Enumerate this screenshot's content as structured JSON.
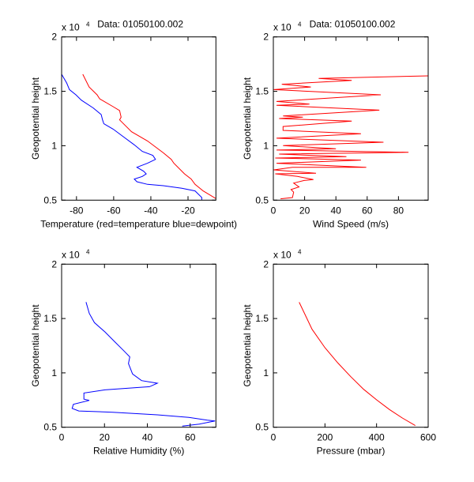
{
  "chart_data": [
    {
      "type": "line",
      "title": "Data: 01050100.002",
      "xlabel": "Temperature (red=temperature blue=dewpoint)",
      "ylabel": "Geopotential height",
      "y_exponent_label": "x 10",
      "y_exponent_power": "4",
      "xlim": [
        -88,
        -5
      ],
      "ylim": [
        5000,
        20000
      ],
      "xticks": [
        -80,
        -60,
        -40,
        -20
      ],
      "xtick_labels": [
        "-80",
        "-60",
        "-40",
        "-20"
      ],
      "yticks": [
        5000,
        10000,
        15000,
        20000
      ],
      "ytick_labels": [
        "0.5",
        "1",
        "1.5",
        "2"
      ],
      "grid": false,
      "series": [
        {
          "color": "#ff0000",
          "points": [
            [
              -76.6,
              16565
            ],
            [
              -73.2,
              15400
            ],
            [
              -68.9,
              14680
            ],
            [
              -67.5,
              14310
            ],
            [
              -60.3,
              13590
            ],
            [
              -56.8,
              13230
            ],
            [
              -56.0,
              12620
            ],
            [
              -56.8,
              12380
            ],
            [
              -50.4,
              11290
            ],
            [
              -41.8,
              10440
            ],
            [
              -33.3,
              9350
            ],
            [
              -29.0,
              8750
            ],
            [
              -27.6,
              8390
            ],
            [
              -21.9,
              7420
            ],
            [
              -18.3,
              6940
            ],
            [
              -16.2,
              6450
            ],
            [
              -11.9,
              5850
            ],
            [
              -4.8,
              5120
            ]
          ]
        },
        {
          "color": "#0000ff",
          "points": [
            [
              -88,
              16565
            ],
            [
              -85.3,
              15770
            ],
            [
              -83.8,
              15160
            ],
            [
              -80.3,
              14680
            ],
            [
              -77.4,
              14190
            ],
            [
              -71.0,
              13470
            ],
            [
              -66.7,
              12860
            ],
            [
              -66.0,
              12380
            ],
            [
              -65.3,
              12020
            ],
            [
              -60.3,
              11530
            ],
            [
              -54.6,
              10800
            ],
            [
              -48.9,
              10080
            ],
            [
              -44.6,
              9480
            ],
            [
              -38.9,
              9110
            ],
            [
              -37.5,
              8750
            ],
            [
              -41.8,
              8390
            ],
            [
              -47.5,
              8020
            ],
            [
              -43.9,
              7660
            ],
            [
              -42.5,
              7420
            ],
            [
              -44.6,
              7180
            ],
            [
              -48.9,
              6940
            ],
            [
              -47.5,
              6690
            ],
            [
              -41.8,
              6450
            ],
            [
              -33.3,
              6330
            ],
            [
              -23.3,
              6090
            ],
            [
              -16.2,
              5850
            ],
            [
              -12.6,
              5240
            ],
            [
              -12.6,
              5000
            ]
          ]
        }
      ]
    },
    {
      "type": "line",
      "title": "Data: 01050100.002",
      "xlabel": "Wind Speed (m/s)",
      "ylabel": "Geopotential height",
      "y_exponent_label": "x 10",
      "y_exponent_power": "4",
      "xlim": [
        0,
        99
      ],
      "ylim": [
        5000,
        20000
      ],
      "xticks": [
        0,
        20,
        40,
        60,
        80
      ],
      "xtick_labels": [
        "0",
        "20",
        "40",
        "60",
        "80"
      ],
      "yticks": [
        5000,
        10000,
        15000,
        20000
      ],
      "ytick_labels": [
        "0.5",
        "1",
        "1.5",
        "2"
      ],
      "grid": false,
      "series": [
        {
          "color": "#ff0000",
          "points": [
            [
              4.6,
              5120
            ],
            [
              12.2,
              5240
            ],
            [
              13.0,
              5730
            ],
            [
              11.3,
              5970
            ],
            [
              16.4,
              6210
            ],
            [
              13.0,
              6570
            ],
            [
              19.7,
              6810
            ],
            [
              25.6,
              6890
            ],
            [
              15.5,
              7180
            ],
            [
              1.2,
              7420
            ],
            [
              27.3,
              7470
            ],
            [
              0.3,
              7780
            ],
            [
              12.2,
              8020
            ],
            [
              59.4,
              8020
            ],
            [
              2.0,
              8390
            ],
            [
              56.0,
              8680
            ],
            [
              1.2,
              8870
            ],
            [
              46.7,
              8990
            ],
            [
              3.7,
              9230
            ],
            [
              86.4,
              9400
            ],
            [
              2.0,
              9600
            ],
            [
              40.0,
              9720
            ],
            [
              6.2,
              10010
            ],
            [
              70.4,
              10320
            ],
            [
              2.0,
              10690
            ],
            [
              56.0,
              11100
            ],
            [
              6.2,
              11410
            ],
            [
              6.2,
              11770
            ],
            [
              50.1,
              12260
            ],
            [
              3.7,
              12500
            ],
            [
              18.9,
              12620
            ],
            [
              6.2,
              12740
            ],
            [
              67.8,
              13270
            ],
            [
              2.0,
              13710
            ],
            [
              23.1,
              13830
            ],
            [
              2.0,
              14070
            ],
            [
              68.7,
              14680
            ],
            [
              0.3,
              15160
            ],
            [
              24.0,
              15400
            ],
            [
              5.4,
              15650
            ],
            [
              50.1,
              16010
            ],
            [
              29.0,
              16180
            ],
            [
              99,
              16420
            ]
          ]
        }
      ]
    },
    {
      "type": "line",
      "title": "",
      "xlabel": "Relative Humidity (%)",
      "ylabel": "Geopotential height",
      "y_exponent_label": "x 10",
      "y_exponent_power": "4",
      "xlim": [
        0,
        72
      ],
      "ylim": [
        5000,
        20000
      ],
      "xticks": [
        0,
        20,
        40,
        60
      ],
      "xtick_labels": [
        "0",
        "20",
        "40",
        "60"
      ],
      "yticks": [
        5000,
        10000,
        15000,
        20000
      ],
      "ytick_labels": [
        "0.5",
        "1",
        "1.5",
        "2"
      ],
      "grid": false,
      "series": [
        {
          "color": "#0000ff",
          "points": [
            [
              11.4,
              16510
            ],
            [
              12.9,
              15470
            ],
            [
              15.3,
              14620
            ],
            [
              20.2,
              13770
            ],
            [
              25.1,
              12800
            ],
            [
              28.8,
              12080
            ],
            [
              31.8,
              11470
            ],
            [
              31.2,
              10860
            ],
            [
              33.1,
              9900
            ],
            [
              37.3,
              9290
            ],
            [
              44.7,
              9050
            ],
            [
              41.0,
              8730
            ],
            [
              20.2,
              8440
            ],
            [
              10.4,
              8150
            ],
            [
              10.4,
              7590
            ],
            [
              12.9,
              7470
            ],
            [
              5.5,
              7110
            ],
            [
              4.9,
              6740
            ],
            [
              8.0,
              6500
            ],
            [
              23.9,
              6380
            ],
            [
              44.7,
              6140
            ],
            [
              59.4,
              5900
            ],
            [
              68.0,
              5650
            ],
            [
              71.6,
              5580
            ],
            [
              64.3,
              5290
            ],
            [
              56.3,
              5100
            ]
          ]
        }
      ]
    },
    {
      "type": "line",
      "title": "",
      "xlabel": "Pressure (mbar)",
      "ylabel": "Geopotential height",
      "y_exponent_label": "x 10",
      "y_exponent_power": "4",
      "xlim": [
        0,
        600
      ],
      "ylim": [
        5000,
        20000
      ],
      "xticks": [
        0,
        200,
        400,
        600
      ],
      "xtick_labels": [
        "0",
        "200",
        "400",
        "600"
      ],
      "yticks": [
        5000,
        10000,
        15000,
        20000
      ],
      "ytick_labels": [
        "0.5",
        "1",
        "1.5",
        "2"
      ],
      "grid": false,
      "series": [
        {
          "color": "#ff0000",
          "points": [
            [
              100,
              16500
            ],
            [
              150,
              14010
            ],
            [
              200,
              12320
            ],
            [
              250,
              10910
            ],
            [
              300,
              9650
            ],
            [
              350,
              8490
            ],
            [
              400,
              7520
            ],
            [
              450,
              6630
            ],
            [
              500,
              5850
            ],
            [
              550,
              5150
            ]
          ]
        }
      ]
    }
  ]
}
